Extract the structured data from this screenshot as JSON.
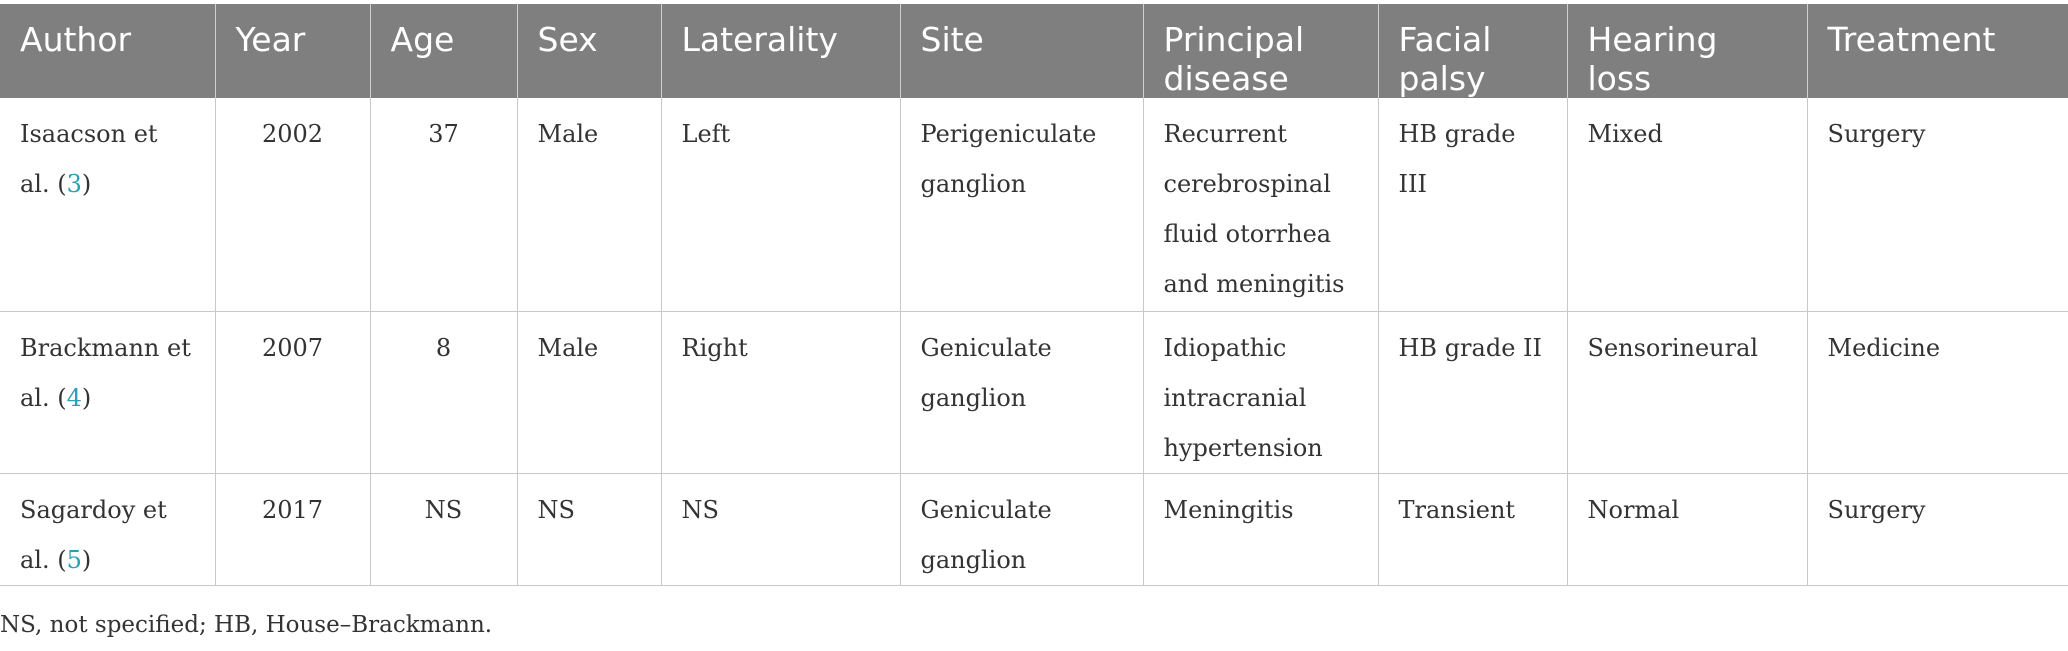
{
  "table": {
    "headers": [
      "Author",
      "Year",
      "Age",
      "Sex",
      "Laterality",
      "Site",
      "Principal disease",
      "Facial palsy",
      "Hearing loss",
      "Treatment"
    ],
    "rows": [
      {
        "author": "Isaacson et al. (",
        "ref": "3",
        "author_close": ")",
        "year": "2002",
        "age": "37",
        "sex": "Male",
        "laterality": "Left",
        "site": "Perigeniculate ganglion",
        "disease": "Recurrent cerebrospinal fluid otorrhea and meningitis",
        "facial_palsy": "HB grade III",
        "hearing_loss": "Mixed",
        "treatment": "Surgery"
      },
      {
        "author": "Brackmann et al. (",
        "ref": "4",
        "author_close": ")",
        "year": "2007",
        "age": "8",
        "sex": "Male",
        "laterality": "Right",
        "site": "Geniculate ganglion",
        "disease": "Idiopathic intracranial hypertension",
        "facial_palsy": "HB grade II",
        "hearing_loss": "Sensorineural",
        "treatment": "Medicine"
      },
      {
        "author": "Sagardoy et al. (",
        "ref": "5",
        "author_close": ")",
        "year": "2017",
        "age": "NS",
        "sex": "NS",
        "laterality": "NS",
        "site": "Geniculate ganglion",
        "disease": "Meningitis",
        "facial_palsy": "Transient",
        "hearing_loss": "Normal",
        "treatment": "Surgery"
      }
    ]
  },
  "footnote": "NS, not specified; HB, House–Brackmann.",
  "colors": {
    "header_bg": "#7f7f7f",
    "header_text": "#ffffff",
    "ref_link": "#2a9fb5",
    "grid": "#c8c8c8"
  }
}
